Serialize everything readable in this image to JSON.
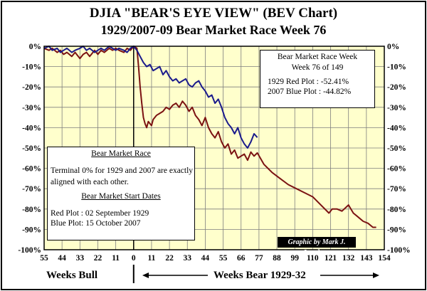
{
  "title": "DJIA \"BEAR'S EYE VIEW\" (BEV Chart)",
  "subtitle": "1929/2007-09  Bear Market Race Week 76",
  "colors": {
    "plot_bg": "#ffffcc",
    "red_series": "#7b1212",
    "blue_series": "#1a1a8c",
    "grid": "#7f7f7f"
  },
  "top_right_box": {
    "title_line1": "Bear Market Race Week",
    "title_line2": "Week 76 of 149",
    "red_line": "1929 Red Plot   : -52.41%",
    "blue_line": "2007 Blue Plot : -44.82%"
  },
  "left_box": {
    "header1": "Bear Market Race",
    "text": "Terminal 0% for 1929 and 2007 are exactly aligned with each other.",
    "header2": "Bear Market Start Dates",
    "red_start": "Red Plot :  02 September 1929",
    "blue_start": "Blue Plot:  15 October 2007"
  },
  "credit": "Graphic by Mark J. Lundeen",
  "bottom_labels": {
    "bull": "Weeks Bull",
    "bear": "Weeks Bear 1929-32"
  },
  "chart_data": {
    "type": "line",
    "title": "DJIA \"BEAR'S EYE VIEW\" (BEV Chart)",
    "subtitle": "1929/2007-09  Bear Market Race Week 76",
    "xlim": [
      -55,
      154
    ],
    "ylim": [
      -100,
      0
    ],
    "y_ticks": [
      0,
      -10,
      -20,
      -30,
      -40,
      -50,
      -60,
      -70,
      -80,
      -90,
      -100
    ],
    "y_tick_labels": [
      "0%",
      "-10%",
      "-20%",
      "-30%",
      "-40%",
      "-50%",
      "-60%",
      "-70%",
      "-80%",
      "-90%",
      "-100%"
    ],
    "x_ticks": [
      -55,
      -44,
      -33,
      -22,
      -11,
      0,
      11,
      22,
      33,
      44,
      55,
      66,
      77,
      88,
      99,
      110,
      121,
      132,
      143,
      154
    ],
    "x_tick_labels": [
      "55",
      "44",
      "33",
      "22",
      "11",
      "0",
      "11",
      "22",
      "33",
      "44",
      "55",
      "66",
      "77",
      "88",
      "99",
      "110",
      "121",
      "132",
      "143",
      "154"
    ],
    "grid": true,
    "series": [
      {
        "name": "1929 Red Plot",
        "color": "#7b1212",
        "x": [
          -55,
          -52,
          -50,
          -47,
          -45,
          -43,
          -41,
          -38,
          -36,
          -33,
          -31,
          -29,
          -27,
          -24,
          -22,
          -20,
          -18,
          -15,
          -13,
          -11,
          -9,
          -6,
          -4,
          -2,
          0,
          2,
          3,
          4,
          5,
          6,
          7,
          8,
          9,
          10,
          11,
          12,
          14,
          16,
          18,
          20,
          22,
          24,
          26,
          28,
          30,
          32,
          34,
          36,
          38,
          40,
          42,
          44,
          46,
          48,
          50,
          52,
          54,
          56,
          58,
          60,
          62,
          64,
          66,
          68,
          70,
          72,
          74,
          76,
          80,
          85,
          90,
          95,
          100,
          105,
          110,
          115,
          120,
          122,
          125,
          128,
          132,
          135,
          138,
          141,
          144,
          147,
          149
        ],
        "y": [
          -1,
          -2,
          -1,
          -3,
          -2,
          -4,
          -3,
          -5,
          -3,
          -6,
          -4,
          -3,
          -5,
          -2,
          -4,
          -2,
          -3,
          -1,
          -2,
          -1,
          -2,
          -3,
          -1,
          -2,
          0,
          -1,
          -10,
          -20,
          -28,
          -35,
          -38,
          -40,
          -37,
          -38,
          -39,
          -36,
          -34,
          -33,
          -32,
          -30,
          -31,
          -29,
          -28,
          -30,
          -27,
          -29,
          -32,
          -30,
          -34,
          -36,
          -39,
          -35,
          -40,
          -43,
          -45,
          -42,
          -47,
          -50,
          -48,
          -53,
          -51,
          -55,
          -54,
          -53,
          -56,
          -52,
          -54,
          -52.41,
          -58,
          -62,
          -65,
          -68,
          -70,
          -72,
          -74,
          -78,
          -82,
          -80,
          -80,
          -81,
          -78,
          -82,
          -84,
          -86,
          -87,
          -89,
          -89
        ]
      },
      {
        "name": "2007 Blue Plot",
        "color": "#1a1a8c",
        "x": [
          -55,
          -52,
          -50,
          -47,
          -45,
          -43,
          -41,
          -38,
          -36,
          -33,
          -31,
          -29,
          -27,
          -24,
          -22,
          -20,
          -18,
          -15,
          -13,
          -11,
          -9,
          -6,
          -4,
          -2,
          0,
          2,
          4,
          6,
          8,
          10,
          12,
          14,
          16,
          18,
          20,
          22,
          24,
          26,
          28,
          30,
          32,
          34,
          36,
          38,
          40,
          42,
          44,
          46,
          48,
          50,
          52,
          54,
          56,
          58,
          60,
          62,
          64,
          66,
          68,
          70,
          72,
          74,
          76
        ],
        "y": [
          -1,
          0,
          -2,
          -1,
          -3,
          -2,
          -1,
          -3,
          -2,
          -1,
          0,
          -2,
          -1,
          -3,
          -2,
          -1,
          -2,
          0,
          -1,
          -2,
          -1,
          -2,
          -3,
          -1,
          0,
          -2,
          -5,
          -8,
          -10,
          -9,
          -12,
          -11,
          -10,
          -14,
          -12,
          -15,
          -17,
          -16,
          -18,
          -17,
          -16,
          -19,
          -20,
          -18,
          -17,
          -20,
          -22,
          -25,
          -24,
          -28,
          -26,
          -30,
          -35,
          -38,
          -40,
          -43,
          -40,
          -45,
          -48,
          -50,
          -47,
          -43,
          -44.82
        ]
      }
    ]
  }
}
